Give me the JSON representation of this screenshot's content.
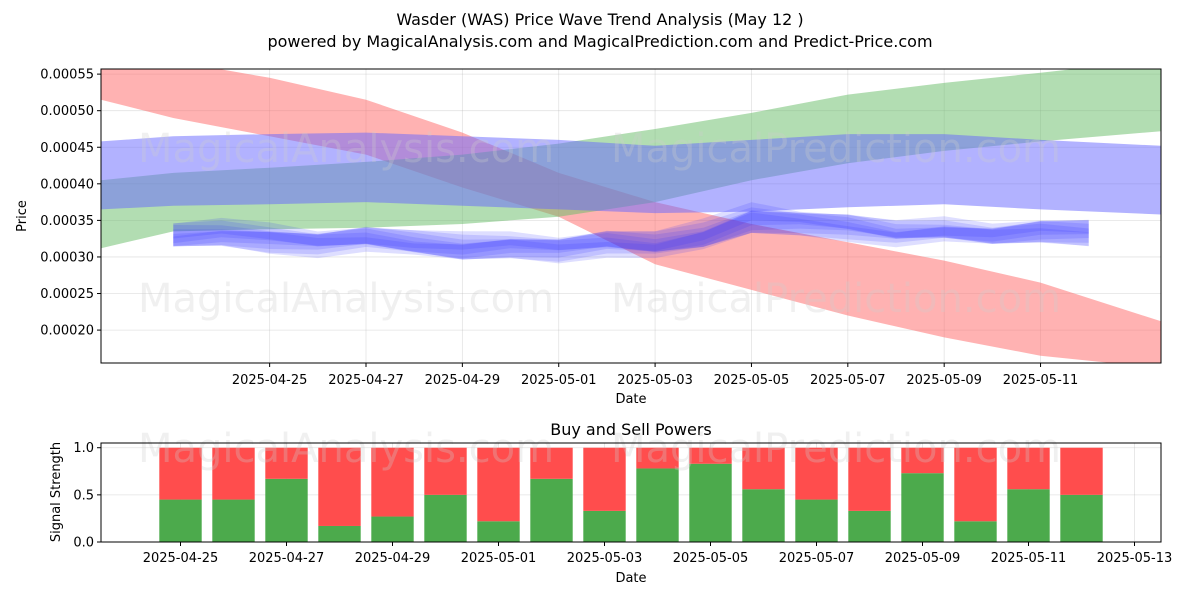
{
  "header": {
    "title": "Wasder (WAS) Price Wave Trend Analysis (May 12 )",
    "subtitle": "powered by MagicalAnalysis.com and MagicalPrediction.com and Predict-Price.com"
  },
  "watermarks": [
    "MagicalAnalysis.com",
    "MagicalPrediction.com"
  ],
  "chart_data": [
    {
      "type": "area",
      "title": "",
      "xlabel": "Date",
      "ylabel": "Price",
      "ylim": [
        0.000155,
        0.000557
      ],
      "xlim": [
        "2025-04-21T12:00",
        "2025-05-13T12:00"
      ],
      "yticks": [
        0.0002,
        0.00025,
        0.0003,
        0.00035,
        0.0004,
        0.00045,
        0.0005,
        0.00055
      ],
      "ytick_labels": [
        "0.00020",
        "0.00025",
        "0.00030",
        "0.00035",
        "0.00040",
        "0.00045",
        "0.00050",
        "0.00055"
      ],
      "xticks": [
        "2025-04-25",
        "2025-04-27",
        "2025-04-29",
        "2025-05-01",
        "2025-05-03",
        "2025-05-05",
        "2025-05-07",
        "2025-05-09",
        "2025-05-11"
      ],
      "grid": true,
      "bands": [
        {
          "color": "#ff6666",
          "opacity": 0.5,
          "x": [
            "2025-04-21T12:00",
            "2025-04-23",
            "2025-04-25",
            "2025-04-27",
            "2025-04-29",
            "2025-05-01",
            "2025-05-03",
            "2025-05-05",
            "2025-05-07",
            "2025-05-09",
            "2025-05-11",
            "2025-05-13T12:00"
          ],
          "upper": [
            0.000575,
            0.000568,
            0.000545,
            0.000515,
            0.00047,
            0.000415,
            0.000375,
            0.000345,
            0.00032,
            0.000295,
            0.000265,
            0.000212
          ],
          "lower": [
            0.000515,
            0.00049,
            0.000465,
            0.00044,
            0.000395,
            0.000355,
            0.00029,
            0.000255,
            0.00022,
            0.00019,
            0.000165,
            0.000148
          ]
        },
        {
          "color": "#66bb66",
          "opacity": 0.5,
          "x": [
            "2025-04-21T12:00",
            "2025-04-23",
            "2025-04-25",
            "2025-04-27",
            "2025-04-29",
            "2025-05-01",
            "2025-05-03",
            "2025-05-05",
            "2025-05-07",
            "2025-05-09",
            "2025-05-11",
            "2025-05-13T12:00"
          ],
          "upper": [
            0.000405,
            0.000415,
            0.000422,
            0.00043,
            0.00044,
            0.000455,
            0.000475,
            0.000497,
            0.000522,
            0.000538,
            0.000552,
            0.00057
          ],
          "lower": [
            0.000312,
            0.000335,
            0.000338,
            0.00034,
            0.000345,
            0.000355,
            0.000375,
            0.000405,
            0.000428,
            0.000445,
            0.000458,
            0.000472
          ]
        },
        {
          "color": "#6666ff",
          "opacity": 0.5,
          "x": [
            "2025-04-21T12:00",
            "2025-04-23",
            "2025-04-25",
            "2025-04-27",
            "2025-04-29",
            "2025-05-01",
            "2025-05-03",
            "2025-05-05",
            "2025-05-07",
            "2025-05-09",
            "2025-05-11",
            "2025-05-13T12:00"
          ],
          "upper": [
            0.000458,
            0.000465,
            0.000468,
            0.00047,
            0.000465,
            0.00046,
            0.000452,
            0.00046,
            0.000468,
            0.000468,
            0.00046,
            0.000452
          ],
          "lower": [
            0.000365,
            0.00037,
            0.000372,
            0.000375,
            0.00037,
            0.000365,
            0.00036,
            0.000362,
            0.000368,
            0.000372,
            0.000365,
            0.000358
          ]
        }
      ],
      "wave": {
        "color": "#3333ff",
        "x": [
          "2025-04-23",
          "2025-04-24",
          "2025-04-25",
          "2025-04-26",
          "2025-04-27",
          "2025-04-28",
          "2025-04-29",
          "2025-04-30",
          "2025-05-01",
          "2025-05-02",
          "2025-05-03",
          "2025-05-04",
          "2025-05-05",
          "2025-05-06",
          "2025-05-07",
          "2025-05-08",
          "2025-05-09",
          "2025-05-10",
          "2025-05-11",
          "2025-05-12"
        ],
        "y": [
          0.000328,
          0.000332,
          0.000326,
          0.00032,
          0.000326,
          0.000318,
          0.000312,
          0.000316,
          0.000312,
          0.00032,
          0.000316,
          0.000328,
          0.000352,
          0.000348,
          0.000342,
          0.000332,
          0.000336,
          0.00033,
          0.000336,
          0.000334
        ],
        "spread": [
          2.2e-05,
          2.2e-05,
          2.4e-05,
          2.2e-05,
          2.2e-05,
          2.2e-05,
          2.4e-05,
          2.2e-05,
          2.2e-05,
          2.2e-05,
          2.2e-05,
          2.6e-05,
          2.8e-05,
          2.2e-05,
          2.2e-05,
          2e-05,
          2e-05,
          2e-05,
          2.2e-05,
          2.2e-05
        ]
      }
    },
    {
      "type": "bar",
      "title": "Buy and Sell Powers",
      "xlabel": "Date",
      "ylabel": "Signal Strength",
      "ylim": [
        0,
        1.05
      ],
      "xlim": [
        "2025-04-23T12:00",
        "2025-05-13T12:00"
      ],
      "yticks": [
        0.0,
        0.5,
        1.0
      ],
      "ytick_labels": [
        "0.0",
        "0.5",
        "1.0"
      ],
      "xticks": [
        "2025-04-25",
        "2025-04-27",
        "2025-04-29",
        "2025-05-01",
        "2025-05-03",
        "2025-05-05",
        "2025-05-07",
        "2025-05-09",
        "2025-05-11",
        "2025-05-13"
      ],
      "grid": true,
      "categories": [
        "2025-04-25",
        "2025-04-26",
        "2025-04-27",
        "2025-04-28",
        "2025-04-29",
        "2025-04-30",
        "2025-05-01",
        "2025-05-02",
        "2025-05-03",
        "2025-05-04",
        "2025-05-05",
        "2025-05-06",
        "2025-05-07",
        "2025-05-08",
        "2025-05-09",
        "2025-05-10",
        "2025-05-11",
        "2025-05-12"
      ],
      "series": [
        {
          "color": "#4caa4c",
          "values": [
            0.45,
            0.45,
            0.67,
            0.17,
            0.27,
            0.5,
            0.22,
            0.67,
            0.33,
            0.78,
            0.83,
            0.56,
            0.45,
            0.33,
            0.73,
            0.22,
            0.56,
            0.5
          ]
        },
        {
          "color": "#ff4d4d",
          "values": [
            0.55,
            0.55,
            0.33,
            0.83,
            0.73,
            0.5,
            0.78,
            0.33,
            0.67,
            0.22,
            0.17,
            0.44,
            0.55,
            0.67,
            0.27,
            0.78,
            0.44,
            0.5
          ]
        }
      ]
    }
  ]
}
